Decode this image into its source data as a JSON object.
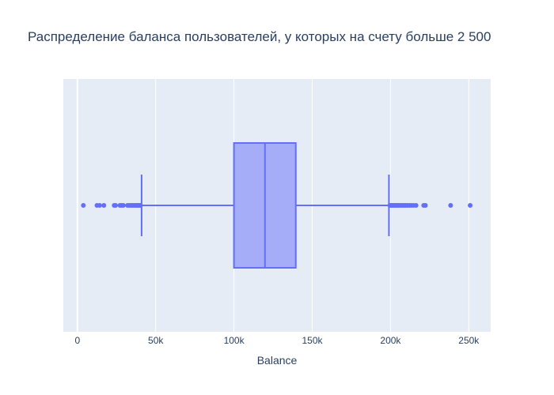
{
  "chart_data": {
    "type": "box",
    "title": "Распределение баланса пользователей, у которых на счету больше 2 500",
    "xlabel": "Balance",
    "ylabel": "",
    "orientation": "horizontal",
    "xlim": [
      -9000,
      264000
    ],
    "x_ticks": [
      {
        "value": 0,
        "label": "0"
      },
      {
        "value": 50000,
        "label": "50k"
      },
      {
        "value": 100000,
        "label": "100k"
      },
      {
        "value": 150000,
        "label": "150k"
      },
      {
        "value": 200000,
        "label": "200k"
      },
      {
        "value": 250000,
        "label": "250k"
      }
    ],
    "grid": true,
    "box": {
      "lower_fence": 41000,
      "q1": 100000,
      "median": 119800,
      "q3": 139500,
      "upper_fence": 199000
    },
    "outliers": [
      3800,
      12500,
      14200,
      16900,
      23500,
      24400,
      27200,
      28200,
      29300,
      32000,
      33200,
      34300,
      35300,
      36300,
      37200,
      38100,
      38900,
      39600,
      40300,
      199600,
      200400,
      201100,
      201900,
      202600,
      203400,
      204200,
      205000,
      205900,
      206800,
      207700,
      208700,
      209700,
      210800,
      212000,
      213300,
      214700,
      216300,
      221200,
      222300,
      238400,
      250900
    ],
    "colors": {
      "box_line": "#636efa",
      "box_fill": "#a5acf8",
      "plot_bg": "#e5ecf6",
      "grid": "#ffffff",
      "text": "#2a3f5f"
    }
  }
}
